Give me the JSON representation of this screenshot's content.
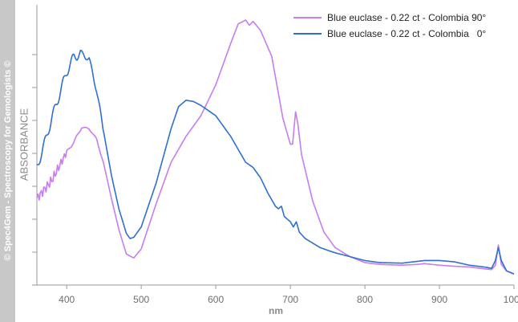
{
  "watermark": "© Spec4Gem - Spectroscopy for Gemologists ©",
  "chart_data": {
    "type": "line",
    "title": "",
    "xlabel": "nm",
    "ylabel": "ABSORBANCE",
    "xlim": [
      360,
      1000
    ],
    "ylim": [
      0,
      1
    ],
    "x_ticks": [
      400,
      500,
      600,
      700,
      800,
      900,
      1000
    ],
    "x_tick_labels": [
      "400",
      "500",
      "600",
      "700",
      "800",
      "900",
      "1000"
    ],
    "y_tick_labels_shown": false,
    "grid": false,
    "legend_position": "top-right",
    "series": [
      {
        "name": "Blue euclase - 0.22 ct - Colombia 90°",
        "color": "#c77cf0",
        "points": [
          [
            360,
            0.31
          ],
          [
            380,
            0.38
          ],
          [
            400,
            0.49
          ],
          [
            410,
            0.53
          ],
          [
            420,
            0.585
          ],
          [
            430,
            0.58
          ],
          [
            440,
            0.54
          ],
          [
            450,
            0.44
          ],
          [
            460,
            0.31
          ],
          [
            470,
            0.19
          ],
          [
            480,
            0.095
          ],
          [
            490,
            0.08
          ],
          [
            500,
            0.115
          ],
          [
            520,
            0.29
          ],
          [
            540,
            0.45
          ],
          [
            560,
            0.55
          ],
          [
            580,
            0.63
          ],
          [
            600,
            0.75
          ],
          [
            620,
            0.91
          ],
          [
            630,
            0.985
          ],
          [
            640,
            1.0
          ],
          [
            645,
            0.98
          ],
          [
            650,
            0.995
          ],
          [
            660,
            0.96
          ],
          [
            675,
            0.86
          ],
          [
            690,
            0.62
          ],
          [
            700,
            0.52
          ],
          [
            703,
            0.52
          ],
          [
            707,
            0.645
          ],
          [
            710,
            0.6
          ],
          [
            715,
            0.48
          ],
          [
            730,
            0.3
          ],
          [
            745,
            0.18
          ],
          [
            760,
            0.12
          ],
          [
            780,
            0.085
          ],
          [
            800,
            0.062
          ],
          [
            820,
            0.055
          ],
          [
            850,
            0.052
          ],
          [
            870,
            0.055
          ],
          [
            880,
            0.058
          ],
          [
            900,
            0.052
          ],
          [
            920,
            0.048
          ],
          [
            940,
            0.045
          ],
          [
            960,
            0.038
          ],
          [
            970,
            0.035
          ],
          [
            975,
            0.052
          ],
          [
            979,
            0.13
          ],
          [
            983,
            0.055
          ],
          [
            990,
            0.03
          ],
          [
            1000,
            0.018
          ]
        ]
      },
      {
        "name": "Blue euclase - 0.22 ct - Colombia   0°",
        "color": "#2f6fd0",
        "points": [
          [
            360,
            0.43
          ],
          [
            370,
            0.52
          ],
          [
            380,
            0.62
          ],
          [
            390,
            0.71
          ],
          [
            400,
            0.8
          ],
          [
            410,
            0.86
          ],
          [
            420,
            0.87
          ],
          [
            430,
            0.85
          ],
          [
            440,
            0.73
          ],
          [
            450,
            0.56
          ],
          [
            460,
            0.4
          ],
          [
            470,
            0.27
          ],
          [
            480,
            0.175
          ],
          [
            485,
            0.155
          ],
          [
            490,
            0.16
          ],
          [
            500,
            0.2
          ],
          [
            520,
            0.37
          ],
          [
            540,
            0.58
          ],
          [
            550,
            0.665
          ],
          [
            560,
            0.69
          ],
          [
            570,
            0.685
          ],
          [
            580,
            0.67
          ],
          [
            600,
            0.63
          ],
          [
            620,
            0.55
          ],
          [
            640,
            0.45
          ],
          [
            650,
            0.43
          ],
          [
            660,
            0.39
          ],
          [
            670,
            0.33
          ],
          [
            680,
            0.28
          ],
          [
            684,
            0.27
          ],
          [
            688,
            0.28
          ],
          [
            692,
            0.24
          ],
          [
            700,
            0.22
          ],
          [
            704,
            0.2
          ],
          [
            708,
            0.22
          ],
          [
            712,
            0.18
          ],
          [
            720,
            0.155
          ],
          [
            740,
            0.12
          ],
          [
            760,
            0.1
          ],
          [
            780,
            0.085
          ],
          [
            800,
            0.07
          ],
          [
            820,
            0.062
          ],
          [
            850,
            0.06
          ],
          [
            880,
            0.07
          ],
          [
            900,
            0.07
          ],
          [
            920,
            0.065
          ],
          [
            940,
            0.052
          ],
          [
            960,
            0.045
          ],
          [
            970,
            0.04
          ],
          [
            975,
            0.07
          ],
          [
            979,
            0.12
          ],
          [
            983,
            0.07
          ],
          [
            990,
            0.03
          ],
          [
            1000,
            0.018
          ]
        ]
      }
    ]
  }
}
